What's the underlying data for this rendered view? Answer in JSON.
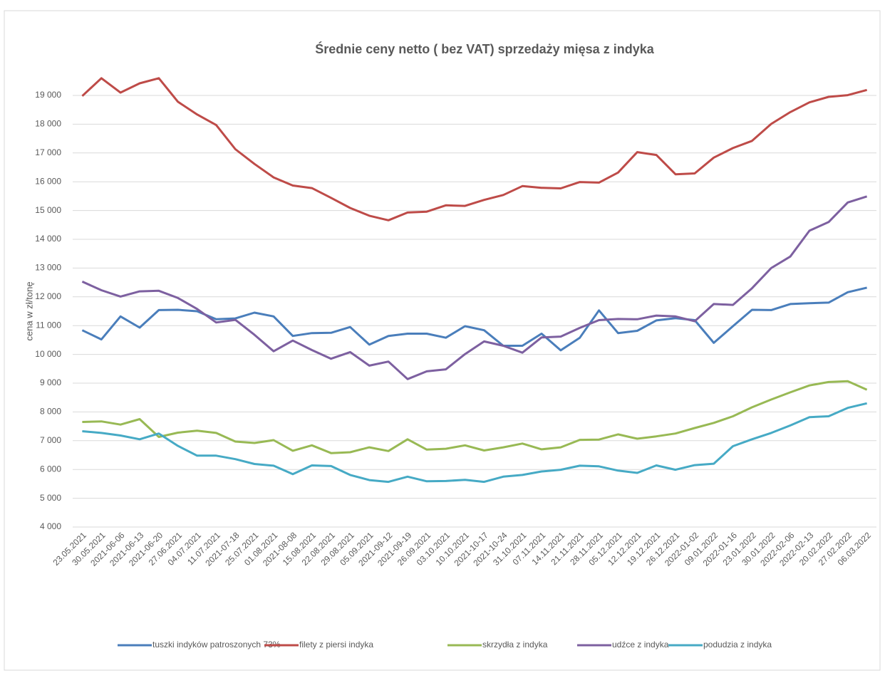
{
  "chart_data": {
    "type": "line",
    "title": "Średnie ceny netto ( bez VAT) sprzedaży mięsa z indyka",
    "y_label": "cena w zł/tonę",
    "categories": [
      "23.05.2021",
      "30.05.2021",
      "2021-06-06",
      "2021-06-13",
      "2021-06-20",
      "27.06.2021",
      "04.07.2021",
      "11.07.2021",
      "2021-07-18",
      "25.07.2021",
      "01.08.2021",
      "2021-08-08",
      "15.08.2021",
      "22.08.2021",
      "29.08.2021",
      "05.09.2021",
      "2021-09-12",
      "2021-09-19",
      "26.09.2021",
      "03.10.2021",
      "10.10.2021",
      "2021-10-17",
      "2021-10-24",
      "31.10.2021",
      "07.11.2021",
      "14.11.2021",
      "21.11.2021",
      "28.11.2021",
      "05.12.2021",
      "12.12.2021",
      "19.12.2021",
      "26.12.2021",
      "2022-01-02",
      "09.01.2022",
      "2022-01-16",
      "23.01.2022",
      "30.01.2022",
      "2022-02-06",
      "2022-02-13",
      "20.02.2022",
      "27.02.2022",
      "06.03.2022"
    ],
    "series": [
      {
        "name": "tuszki indyków patroszonych 73%",
        "color": "#4a7ebb",
        "values": [
          10840,
          10520,
          11320,
          10930,
          11540,
          11550,
          11500,
          11220,
          11250,
          11450,
          11320,
          10640,
          10740,
          10750,
          10950,
          10340,
          10640,
          10720,
          10720,
          10580,
          10980,
          10840,
          10300,
          10300,
          10720,
          10140,
          10580,
          11530,
          10740,
          10820,
          11180,
          11260,
          11190,
          10400,
          10980,
          11550,
          11540,
          11750,
          11780,
          11800,
          12160,
          12320
        ]
      },
      {
        "name": "filety z piersi indyka",
        "color": "#be4b48",
        "values": [
          18980,
          19600,
          19100,
          19420,
          19600,
          18780,
          18340,
          17970,
          17130,
          16620,
          16150,
          15870,
          15780,
          15440,
          15090,
          14820,
          14660,
          14930,
          14960,
          15180,
          15160,
          15370,
          15540,
          15850,
          15790,
          15770,
          15990,
          15970,
          16320,
          17030,
          16930,
          16260,
          16290,
          16840,
          17170,
          17420,
          18010,
          18420,
          18760,
          18950,
          19010,
          19190
        ]
      },
      {
        "name": "skrzydła z indyka",
        "color": "#98b954",
        "values": [
          7650,
          7670,
          7560,
          7750,
          7130,
          7280,
          7350,
          7270,
          6970,
          6920,
          7020,
          6650,
          6840,
          6570,
          6600,
          6770,
          6640,
          7050,
          6690,
          6720,
          6840,
          6660,
          6770,
          6900,
          6700,
          6770,
          7030,
          7040,
          7220,
          7070,
          7150,
          7250,
          7440,
          7620,
          7850,
          8160,
          8430,
          8680,
          8920,
          9040,
          9070,
          8770
        ]
      },
      {
        "name": "udźce z indyka",
        "color": "#7d60a0",
        "values": [
          12530,
          12230,
          12010,
          12190,
          12210,
          11960,
          11580,
          11110,
          11200,
          10680,
          10110,
          10480,
          10150,
          9850,
          10080,
          9610,
          9750,
          9140,
          9410,
          9480,
          10010,
          10450,
          10300,
          10060,
          10590,
          10620,
          10920,
          11190,
          11230,
          11220,
          11350,
          11320,
          11150,
          11750,
          11720,
          12300,
          13000,
          13400,
          14300,
          14600,
          15280,
          15490
        ]
      },
      {
        "name": "podudzia z indyka",
        "color": "#46aac5",
        "values": [
          7330,
          7270,
          7180,
          7050,
          7250,
          6820,
          6480,
          6480,
          6360,
          6190,
          6130,
          5840,
          6140,
          6120,
          5810,
          5630,
          5570,
          5750,
          5590,
          5600,
          5640,
          5570,
          5750,
          5810,
          5930,
          5990,
          6130,
          6110,
          5960,
          5880,
          6140,
          5990,
          6150,
          6200,
          6810,
          7050,
          7270,
          7530,
          7820,
          7850,
          8140,
          8300
        ]
      }
    ],
    "ylim": [
      4000,
      20000
    ],
    "yticks": [
      {
        "value": 4000,
        "label": "4 000"
      },
      {
        "value": 5000,
        "label": "5 000"
      },
      {
        "value": 6000,
        "label": "6 000"
      },
      {
        "value": 7000,
        "label": "7 000"
      },
      {
        "value": 8000,
        "label": "8 000"
      },
      {
        "value": 9000,
        "label": "9 000"
      },
      {
        "value": 10000,
        "label": "10 000"
      },
      {
        "value": 11000,
        "label": "11 000"
      },
      {
        "value": 12000,
        "label": "12 000"
      },
      {
        "value": 13000,
        "label": "13 000"
      },
      {
        "value": 14000,
        "label": "14 000"
      },
      {
        "value": 15000,
        "label": "15 000"
      },
      {
        "value": 16000,
        "label": "16 000"
      },
      {
        "value": 17000,
        "label": "17 000"
      },
      {
        "value": 18000,
        "label": "18 000"
      },
      {
        "value": 19000,
        "label": "19 000"
      }
    ],
    "grid": true,
    "legend": "bottom"
  }
}
